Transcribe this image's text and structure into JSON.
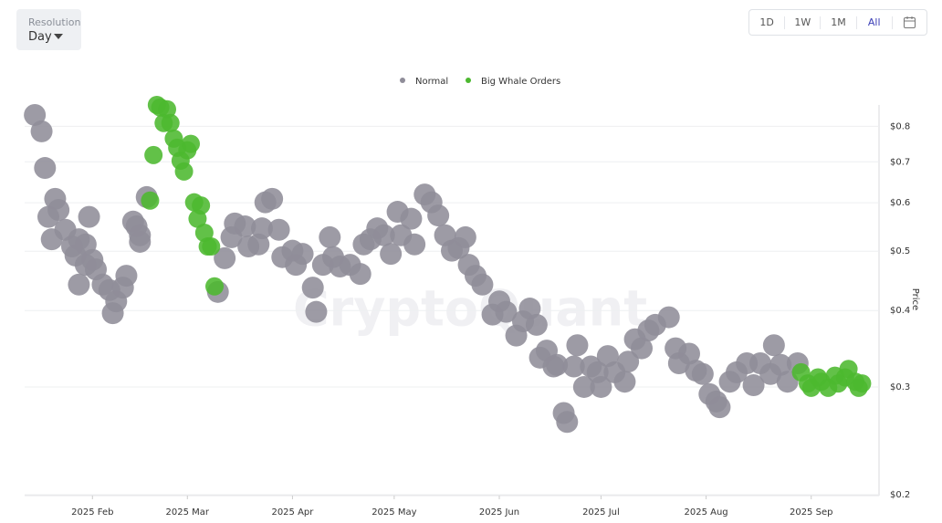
{
  "ui": {
    "resolution_label": "Resolution",
    "resolution_value": "Day",
    "range_buttons": [
      "1D",
      "1W",
      "1M",
      "All"
    ]
  },
  "chart_data": {
    "type": "scatter",
    "watermark": "CryptoQuant",
    "y_label": "Price",
    "log_scale_y": true,
    "grid": true,
    "legend": "top",
    "xlim": [
      11,
      263
    ],
    "xticks": [
      {
        "value": 31,
        "label": "2025 Feb"
      },
      {
        "value": 59,
        "label": "2025 Mar"
      },
      {
        "value": 90,
        "label": "2025 Apr"
      },
      {
        "value": 120,
        "label": "2025 May"
      },
      {
        "value": 151,
        "label": "2025 Jun"
      },
      {
        "value": 181,
        "label": "2025 Jul"
      },
      {
        "value": 212,
        "label": "2025 Aug"
      },
      {
        "value": 243,
        "label": "2025 Sep"
      }
    ],
    "ylim": [
      0.2,
      0.87
    ],
    "yticks": [
      {
        "value": 0.2,
        "label": "$0.2"
      },
      {
        "value": 0.3,
        "label": "$0.3"
      },
      {
        "value": 0.4,
        "label": "$0.4"
      },
      {
        "value": 0.5,
        "label": "$0.5"
      },
      {
        "value": 0.6,
        "label": "$0.6"
      },
      {
        "value": 0.7,
        "label": "$0.7"
      },
      {
        "value": 0.8,
        "label": "$0.8"
      }
    ],
    "series": [
      {
        "name": "Normal",
        "color": "#8f8d99",
        "x": [
          14,
          16,
          17,
          20,
          18,
          21,
          19,
          23,
          25,
          27,
          26,
          29,
          30,
          29,
          31,
          32,
          27,
          34,
          36,
          38,
          37,
          40,
          41,
          43,
          44,
          45,
          45,
          47,
          68,
          70,
          72,
          73,
          76,
          77,
          80,
          82,
          84,
          81,
          86,
          87,
          90,
          91,
          93,
          96,
          97,
          99,
          101,
          102,
          104,
          107,
          110,
          111,
          113,
          115,
          117,
          119,
          121,
          122,
          125,
          126,
          129,
          131,
          133,
          135,
          137,
          139,
          141,
          142,
          144,
          146,
          149,
          151,
          153,
          156,
          158,
          160,
          162,
          163,
          165,
          167,
          168,
          170,
          171,
          173,
          174,
          176,
          178,
          180,
          181,
          183,
          185,
          188,
          189,
          191,
          193,
          195,
          197,
          201,
          203,
          204,
          207,
          209,
          211,
          213,
          215,
          216,
          219,
          221,
          224,
          226,
          228,
          231,
          232,
          234,
          236,
          239
        ],
        "values": [
          0.835,
          0.785,
          0.684,
          0.609,
          0.569,
          0.584,
          0.523,
          0.542,
          0.509,
          0.523,
          0.492,
          0.513,
          0.569,
          0.475,
          0.484,
          0.467,
          0.441,
          0.441,
          0.432,
          0.414,
          0.396,
          0.436,
          0.456,
          0.559,
          0.549,
          0.531,
          0.518,
          0.613,
          0.429,
          0.487,
          0.527,
          0.555,
          0.549,
          0.509,
          0.513,
          0.601,
          0.609,
          0.545,
          0.542,
          0.489,
          0.501,
          0.475,
          0.495,
          0.436,
          0.398,
          0.475,
          0.527,
          0.489,
          0.472,
          0.475,
          0.459,
          0.513,
          0.523,
          0.545,
          0.531,
          0.495,
          0.58,
          0.531,
          0.565,
          0.513,
          0.619,
          0.601,
          0.572,
          0.531,
          0.501,
          0.506,
          0.527,
          0.475,
          0.456,
          0.441,
          0.394,
          0.414,
          0.398,
          0.364,
          0.384,
          0.403,
          0.379,
          0.335,
          0.344,
          0.324,
          0.326,
          0.272,
          0.263,
          0.324,
          0.351,
          0.3,
          0.324,
          0.317,
          0.3,
          0.337,
          0.317,
          0.306,
          0.33,
          0.359,
          0.347,
          0.371,
          0.379,
          0.39,
          0.347,
          0.328,
          0.34,
          0.319,
          0.315,
          0.292,
          0.284,
          0.278,
          0.306,
          0.317,
          0.328,
          0.302,
          0.328,
          0.315,
          0.351,
          0.326,
          0.306,
          0.328
        ]
      },
      {
        "name": "Big Whale Orders",
        "color": "#4cb82f",
        "x": [
          49,
          50,
          51,
          53,
          52,
          54,
          55,
          56,
          57,
          58,
          59,
          60,
          48,
          61,
          63,
          62,
          64,
          65,
          66,
          67,
          240,
          242,
          243,
          245,
          246,
          248,
          250,
          251,
          253,
          254,
          256,
          257,
          258
        ],
        "values": [
          0.718,
          0.867,
          0.859,
          0.853,
          0.81,
          0.81,
          0.764,
          0.738,
          0.703,
          0.675,
          0.731,
          0.749,
          0.605,
          0.601,
          0.594,
          0.565,
          0.536,
          0.509,
          0.509,
          0.438,
          0.317,
          0.304,
          0.299,
          0.311,
          0.306,
          0.299,
          0.313,
          0.304,
          0.311,
          0.321,
          0.306,
          0.299,
          0.304
        ]
      }
    ]
  }
}
